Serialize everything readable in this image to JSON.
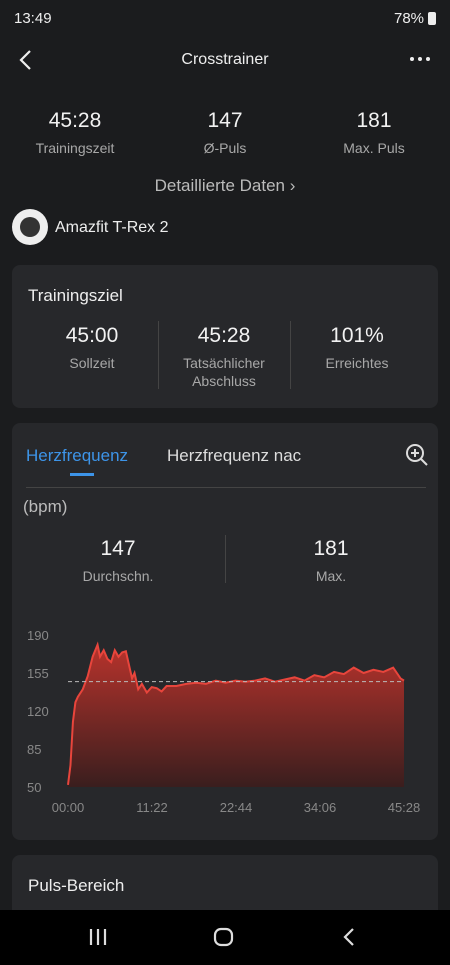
{
  "status": {
    "time": "13:49",
    "battery": "78%"
  },
  "header": {
    "title": "Crosstrainer"
  },
  "summary": [
    {
      "value": "45:28",
      "label": "Trainingszeit"
    },
    {
      "value": "147",
      "label": "Ø-Puls"
    },
    {
      "value": "181",
      "label": "Max. Puls"
    }
  ],
  "details_link": "Detaillierte Daten",
  "device": "Amazfit T-Rex 2",
  "goal": {
    "title": "Trainingsziel",
    "items": [
      {
        "value": "45:00",
        "label": "Sollzeit"
      },
      {
        "value": "45:28",
        "label": "Tatsächlicher Abschluss"
      },
      {
        "value": "101%",
        "label": "Erreichtes"
      }
    ]
  },
  "tabs": [
    "Herzfrequenz",
    "Herzfrequenz nac"
  ],
  "unit": "(bpm)",
  "hr_stats": [
    {
      "value": "147",
      "label": "Durchschn."
    },
    {
      "value": "181",
      "label": "Max."
    }
  ],
  "chart_data": {
    "type": "line",
    "x": [
      0,
      20,
      40,
      60,
      80,
      120,
      160,
      200,
      240,
      260,
      290,
      320,
      350,
      380,
      410,
      440,
      470,
      500,
      520,
      540,
      570,
      600,
      640,
      680,
      720,
      760,
      800,
      880,
      960,
      1040,
      1120,
      1200,
      1280,
      1360,
      1440,
      1520,
      1600,
      1680,
      1760,
      1840,
      1920,
      2000,
      2080,
      2160,
      2240,
      2320,
      2400,
      2480,
      2560,
      2640,
      2700,
      2728
    ],
    "series": [
      {
        "color": "#e8453c",
        "values": [
          52,
          70,
          110,
          128,
          133,
          140,
          152,
          170,
          181,
          170,
          176,
          168,
          165,
          176,
          170,
          174,
          175,
          160,
          150,
          155,
          140,
          145,
          137,
          142,
          141,
          138,
          143,
          143,
          145,
          146,
          145,
          148,
          146,
          148,
          147,
          148,
          150,
          147,
          149,
          151,
          148,
          153,
          151,
          156,
          154,
          160,
          155,
          158,
          156,
          160,
          150,
          148
        ]
      }
    ],
    "reference_line": 147,
    "xlim": [
      0,
      2728
    ],
    "xticks": [
      {
        "value": 0,
        "label": "00:00"
      },
      {
        "value": 682,
        "label": "11:22"
      },
      {
        "value": 1364,
        "label": "22:44"
      },
      {
        "value": 2046,
        "label": "34:06"
      },
      {
        "value": 2728,
        "label": "45:28"
      }
    ],
    "ylim": [
      50,
      190
    ],
    "yticks": [
      50,
      85,
      120,
      155,
      190
    ]
  },
  "section": "Puls-Bereich"
}
